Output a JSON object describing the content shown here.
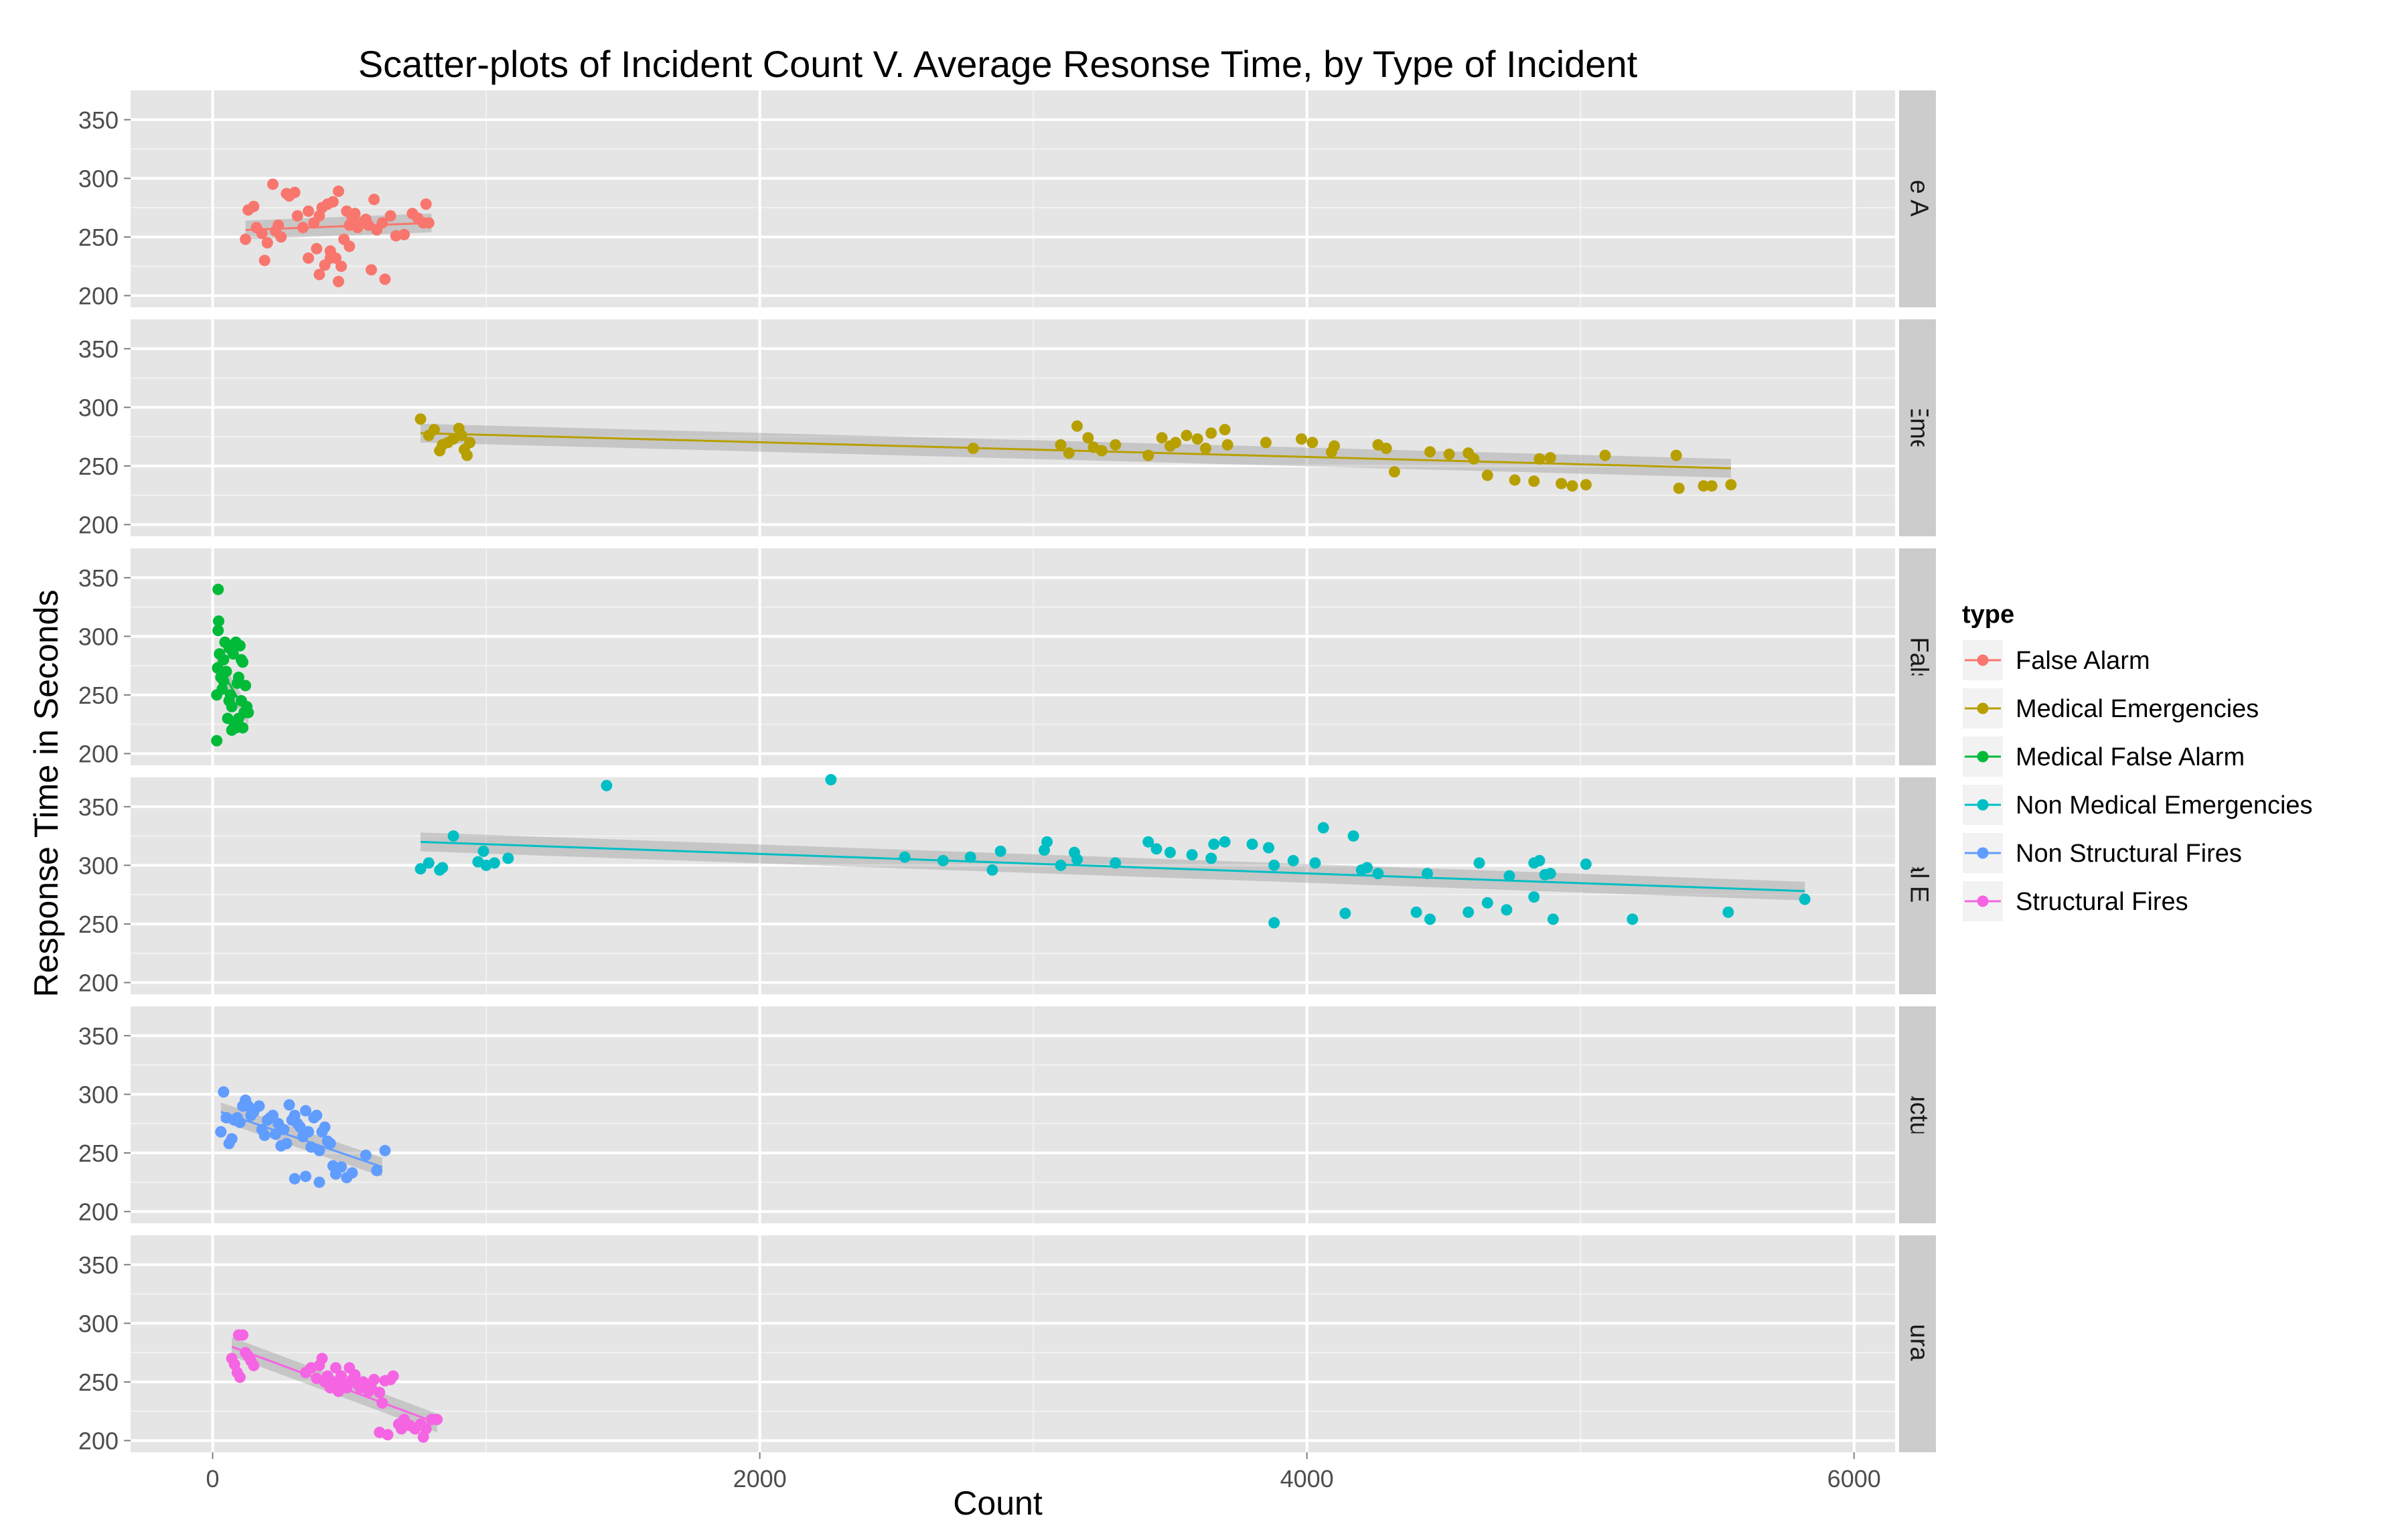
{
  "chart_data": {
    "type": "scatter",
    "title": "Scatter-plots of Incident Count V. Average Resonse Time, by Type of Incident",
    "xlabel": "Count",
    "ylabel": "Response Time in Seconds",
    "xlim": [
      -300,
      6150
    ],
    "ylim": [
      190,
      375
    ],
    "x_ticks": [
      0,
      2000,
      4000,
      6000
    ],
    "y_ticks": [
      200,
      250,
      300,
      350
    ],
    "grid": true,
    "legend": {
      "title": "type",
      "position": "right"
    },
    "facets": [
      {
        "name": "False Alarm",
        "color": "#F8766D",
        "fit": {
          "x0": 120,
          "y0": 256,
          "x1": 800,
          "y1": 262
        },
        "points": [
          [
            120,
            248
          ],
          [
            130,
            273
          ],
          [
            150,
            276
          ],
          [
            160,
            258
          ],
          [
            180,
            253
          ],
          [
            190,
            230
          ],
          [
            200,
            245
          ],
          [
            220,
            295
          ],
          [
            230,
            255
          ],
          [
            240,
            260
          ],
          [
            250,
            250
          ],
          [
            270,
            287
          ],
          [
            280,
            285
          ],
          [
            300,
            288
          ],
          [
            310,
            268
          ],
          [
            330,
            258
          ],
          [
            350,
            272
          ],
          [
            370,
            262
          ],
          [
            380,
            240
          ],
          [
            390,
            268
          ],
          [
            400,
            275
          ],
          [
            410,
            226
          ],
          [
            420,
            278
          ],
          [
            430,
            238
          ],
          [
            440,
            280
          ],
          [
            450,
            232
          ],
          [
            460,
            289
          ],
          [
            470,
            225
          ],
          [
            480,
            248
          ],
          [
            490,
            272
          ],
          [
            500,
            260
          ],
          [
            510,
            265
          ],
          [
            520,
            270
          ],
          [
            530,
            258
          ],
          [
            540,
            262
          ],
          [
            560,
            265
          ],
          [
            570,
            260
          ],
          [
            580,
            222
          ],
          [
            590,
            282
          ],
          [
            600,
            256
          ],
          [
            620,
            262
          ],
          [
            630,
            214
          ],
          [
            650,
            268
          ],
          [
            670,
            251
          ],
          [
            700,
            252
          ],
          [
            730,
            270
          ],
          [
            750,
            266
          ],
          [
            770,
            262
          ],
          [
            780,
            278
          ],
          [
            790,
            262
          ],
          [
            430,
            232
          ],
          [
            460,
            212
          ],
          [
            390,
            218
          ],
          [
            500,
            242
          ],
          [
            350,
            232
          ]
        ]
      },
      {
        "name": "Medical Emergencies",
        "color": "#B79F00",
        "fit": {
          "x0": 760,
          "y0": 278,
          "x1": 5550,
          "y1": 248
        },
        "points": [
          [
            760,
            290
          ],
          [
            790,
            276
          ],
          [
            810,
            281
          ],
          [
            830,
            263
          ],
          [
            840,
            268
          ],
          [
            860,
            270
          ],
          [
            880,
            273
          ],
          [
            900,
            282
          ],
          [
            910,
            276
          ],
          [
            920,
            264
          ],
          [
            930,
            259
          ],
          [
            940,
            270
          ],
          [
            2780,
            265
          ],
          [
            3100,
            268
          ],
          [
            3130,
            261
          ],
          [
            3160,
            284
          ],
          [
            3200,
            274
          ],
          [
            3220,
            266
          ],
          [
            3250,
            263
          ],
          [
            3300,
            268
          ],
          [
            3420,
            259
          ],
          [
            3470,
            274
          ],
          [
            3500,
            267
          ],
          [
            3520,
            270
          ],
          [
            3560,
            276
          ],
          [
            3600,
            273
          ],
          [
            3630,
            265
          ],
          [
            3650,
            278
          ],
          [
            3700,
            281
          ],
          [
            3710,
            268
          ],
          [
            3850,
            270
          ],
          [
            3980,
            273
          ],
          [
            4020,
            270
          ],
          [
            4090,
            262
          ],
          [
            4100,
            267
          ],
          [
            4260,
            268
          ],
          [
            4290,
            265
          ],
          [
            4320,
            245
          ],
          [
            4450,
            262
          ],
          [
            4520,
            260
          ],
          [
            4590,
            261
          ],
          [
            4610,
            256
          ],
          [
            4660,
            242
          ],
          [
            4760,
            238
          ],
          [
            4830,
            237
          ],
          [
            4850,
            256
          ],
          [
            4890,
            257
          ],
          [
            4930,
            235
          ],
          [
            4970,
            233
          ],
          [
            5020,
            234
          ],
          [
            5090,
            259
          ],
          [
            5350,
            259
          ],
          [
            5360,
            231
          ],
          [
            5450,
            233
          ],
          [
            5480,
            233
          ],
          [
            5550,
            234
          ]
        ]
      },
      {
        "name": "Medical False Alarm",
        "color": "#00BA38",
        "fit": {
          "x0": 15,
          "y0": 278,
          "x1": 130,
          "y1": 232
        },
        "points": [
          [
            15,
            211
          ],
          [
            15,
            250
          ],
          [
            18,
            273
          ],
          [
            20,
            305
          ],
          [
            22,
            313
          ],
          [
            25,
            285
          ],
          [
            30,
            265
          ],
          [
            35,
            255
          ],
          [
            40,
            280
          ],
          [
            45,
            295
          ],
          [
            50,
            270
          ],
          [
            55,
            230
          ],
          [
            60,
            290
          ],
          [
            65,
            250
          ],
          [
            70,
            240
          ],
          [
            75,
            285
          ],
          [
            80,
            225
          ],
          [
            85,
            295
          ],
          [
            90,
            260
          ],
          [
            95,
            230
          ],
          [
            100,
            292
          ],
          [
            105,
            245
          ],
          [
            110,
            278
          ],
          [
            115,
            235
          ],
          [
            120,
            258
          ],
          [
            125,
            240
          ],
          [
            130,
            235
          ],
          [
            20,
            340
          ],
          [
            70,
            220
          ],
          [
            85,
            222
          ],
          [
            110,
            222
          ],
          [
            60,
            245
          ],
          [
            40,
            262
          ],
          [
            95,
            265
          ],
          [
            105,
            280
          ]
        ]
      },
      {
        "name": "Non Medical Emergencies",
        "color": "#00BFC4",
        "fit": {
          "x0": 760,
          "y0": 320,
          "x1": 5820,
          "y1": 278
        },
        "points": [
          [
            760,
            297
          ],
          [
            790,
            302
          ],
          [
            830,
            296
          ],
          [
            840,
            298
          ],
          [
            880,
            325
          ],
          [
            970,
            303
          ],
          [
            990,
            312
          ],
          [
            1000,
            300
          ],
          [
            1030,
            302
          ],
          [
            1080,
            306
          ],
          [
            1440,
            368
          ],
          [
            2260,
            373
          ],
          [
            2530,
            307
          ],
          [
            2670,
            304
          ],
          [
            2770,
            307
          ],
          [
            2850,
            296
          ],
          [
            2880,
            312
          ],
          [
            3040,
            313
          ],
          [
            3050,
            320
          ],
          [
            3100,
            300
          ],
          [
            3150,
            311
          ],
          [
            3160,
            305
          ],
          [
            3300,
            302
          ],
          [
            3420,
            320
          ],
          [
            3450,
            314
          ],
          [
            3500,
            311
          ],
          [
            3580,
            309
          ],
          [
            3650,
            306
          ],
          [
            3660,
            318
          ],
          [
            3700,
            320
          ],
          [
            3800,
            318
          ],
          [
            3860,
            315
          ],
          [
            3880,
            300
          ],
          [
            3880,
            251
          ],
          [
            4060,
            332
          ],
          [
            3950,
            304
          ],
          [
            4030,
            302
          ],
          [
            4140,
            259
          ],
          [
            4170,
            325
          ],
          [
            4200,
            296
          ],
          [
            4220,
            298
          ],
          [
            4260,
            293
          ],
          [
            4400,
            260
          ],
          [
            4440,
            293
          ],
          [
            4450,
            254
          ],
          [
            4590,
            260
          ],
          [
            4630,
            302
          ],
          [
            4660,
            268
          ],
          [
            4740,
            291
          ],
          [
            4730,
            262
          ],
          [
            4830,
            273
          ],
          [
            4830,
            302
          ],
          [
            4850,
            304
          ],
          [
            4870,
            292
          ],
          [
            4890,
            293
          ],
          [
            4900,
            254
          ],
          [
            5020,
            301
          ],
          [
            5190,
            254
          ],
          [
            5540,
            260
          ],
          [
            5820,
            271
          ]
        ]
      },
      {
        "name": "Non Structural Fires",
        "color": "#619CFF",
        "fit": {
          "x0": 30,
          "y0": 285,
          "x1": 620,
          "y1": 238
        },
        "points": [
          [
            30,
            268
          ],
          [
            40,
            302
          ],
          [
            50,
            280
          ],
          [
            60,
            258
          ],
          [
            70,
            262
          ],
          [
            80,
            278
          ],
          [
            90,
            280
          ],
          [
            100,
            276
          ],
          [
            110,
            290
          ],
          [
            120,
            295
          ],
          [
            130,
            290
          ],
          [
            140,
            282
          ],
          [
            150,
            285
          ],
          [
            170,
            290
          ],
          [
            180,
            270
          ],
          [
            190,
            265
          ],
          [
            200,
            278
          ],
          [
            210,
            280
          ],
          [
            220,
            282
          ],
          [
            230,
            266
          ],
          [
            240,
            275
          ],
          [
            250,
            256
          ],
          [
            260,
            270
          ],
          [
            270,
            258
          ],
          [
            280,
            291
          ],
          [
            290,
            278
          ],
          [
            300,
            282
          ],
          [
            310,
            275
          ],
          [
            320,
            272
          ],
          [
            330,
            264
          ],
          [
            340,
            286
          ],
          [
            350,
            268
          ],
          [
            360,
            255
          ],
          [
            370,
            280
          ],
          [
            380,
            282
          ],
          [
            390,
            252
          ],
          [
            400,
            268
          ],
          [
            410,
            272
          ],
          [
            420,
            260
          ],
          [
            430,
            258
          ],
          [
            440,
            239
          ],
          [
            450,
            232
          ],
          [
            470,
            238
          ],
          [
            490,
            229
          ],
          [
            510,
            233
          ],
          [
            560,
            248
          ],
          [
            600,
            235
          ],
          [
            630,
            252
          ],
          [
            300,
            228
          ],
          [
            340,
            230
          ],
          [
            390,
            225
          ]
        ]
      },
      {
        "name": "Structural Fires",
        "color": "#F564E3",
        "fit": {
          "x0": 70,
          "y0": 280,
          "x1": 820,
          "y1": 215
        },
        "points": [
          [
            70,
            270
          ],
          [
            80,
            265
          ],
          [
            90,
            258
          ],
          [
            95,
            290
          ],
          [
            100,
            254
          ],
          [
            110,
            290
          ],
          [
            120,
            275
          ],
          [
            130,
            272
          ],
          [
            140,
            268
          ],
          [
            150,
            264
          ],
          [
            340,
            258
          ],
          [
            360,
            262
          ],
          [
            380,
            253
          ],
          [
            390,
            264
          ],
          [
            400,
            270
          ],
          [
            410,
            250
          ],
          [
            420,
            255
          ],
          [
            430,
            245
          ],
          [
            440,
            250
          ],
          [
            450,
            262
          ],
          [
            460,
            242
          ],
          [
            470,
            255
          ],
          [
            480,
            248
          ],
          [
            490,
            245
          ],
          [
            500,
            262
          ],
          [
            510,
            252
          ],
          [
            520,
            256
          ],
          [
            530,
            248
          ],
          [
            540,
            245
          ],
          [
            550,
            250
          ],
          [
            560,
            246
          ],
          [
            570,
            242
          ],
          [
            580,
            245
          ],
          [
            590,
            252
          ],
          [
            610,
            241
          ],
          [
            620,
            232
          ],
          [
            630,
            251
          ],
          [
            650,
            252
          ],
          [
            660,
            255
          ],
          [
            680,
            214
          ],
          [
            690,
            210
          ],
          [
            700,
            218
          ],
          [
            720,
            213
          ],
          [
            740,
            210
          ],
          [
            760,
            214
          ],
          [
            780,
            210
          ],
          [
            800,
            218
          ],
          [
            820,
            218
          ],
          [
            610,
            207
          ],
          [
            640,
            205
          ],
          [
            770,
            203
          ]
        ]
      }
    ]
  }
}
